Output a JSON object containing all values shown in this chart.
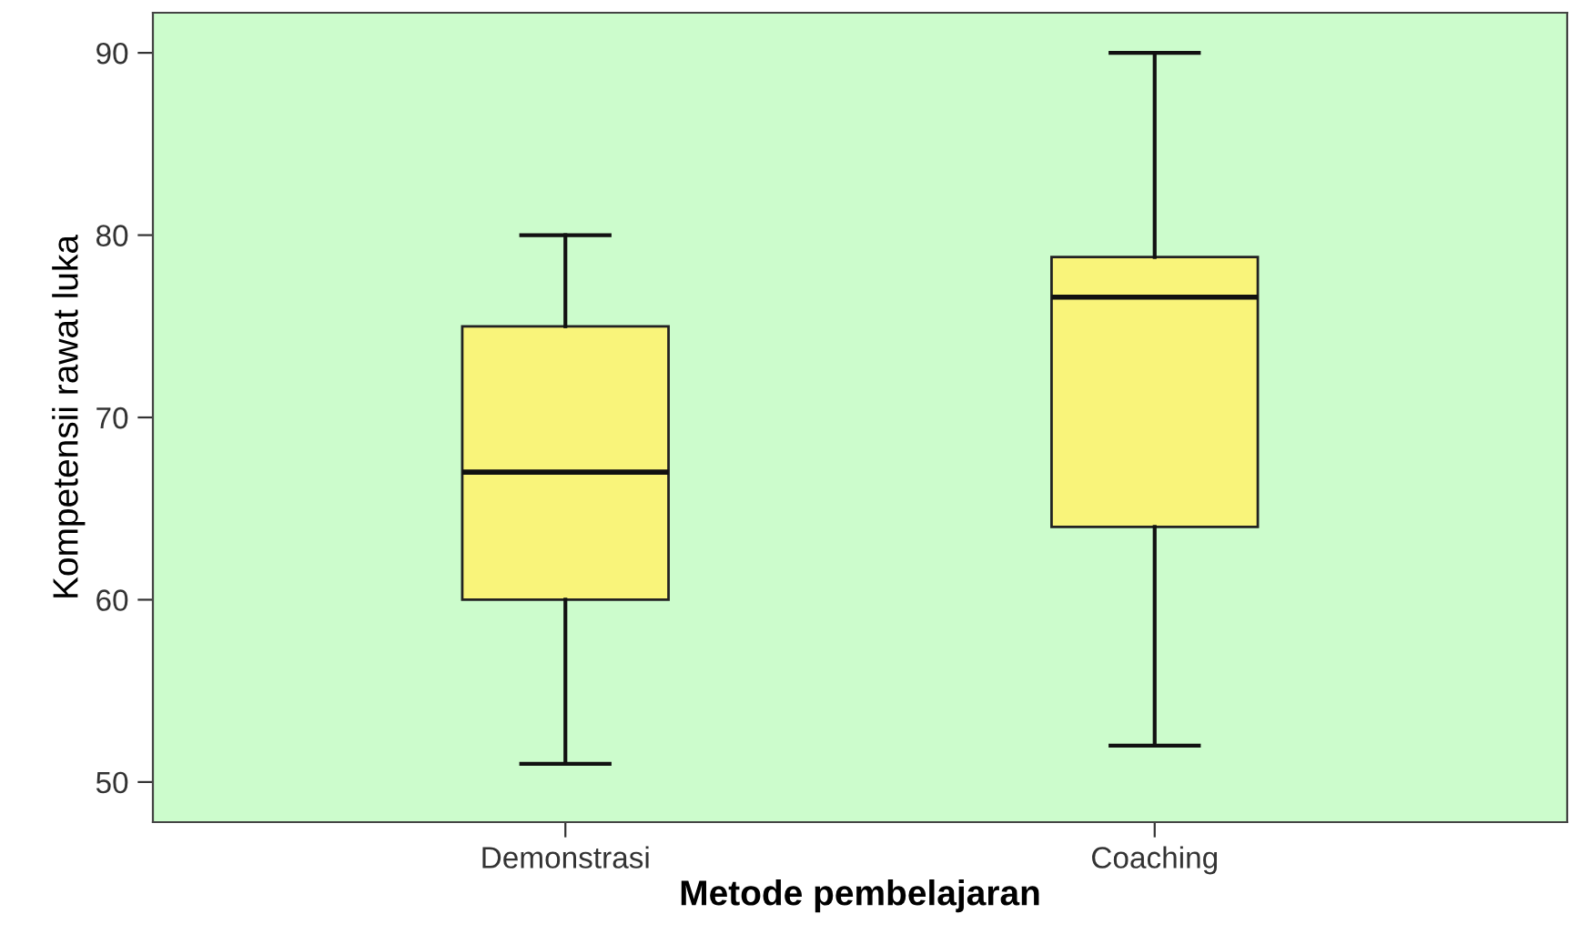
{
  "chart_data": {
    "type": "box",
    "xlabel": "Metode pembelajaran",
    "ylabel": "Kompetensii rawat luka",
    "categories": [
      "Demonstrasi",
      "Coaching"
    ],
    "boxes": [
      {
        "low": 51,
        "q1": 60,
        "median": 67,
        "q3": 75,
        "high": 80
      },
      {
        "low": 52,
        "q1": 64,
        "median": 76.6,
        "q3": 78.8,
        "high": 90
      }
    ],
    "color": "#f9f47a",
    "ylim": [
      47.8,
      92.2
    ],
    "yticks": [
      50,
      60,
      70,
      80,
      90
    ],
    "grid": false,
    "legend": false
  }
}
